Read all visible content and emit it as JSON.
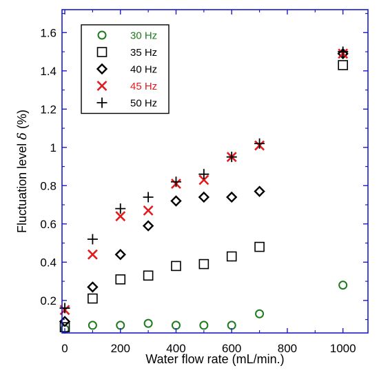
{
  "chart_data": {
    "type": "scatter",
    "xlabel": "Water flow rate (mL/min.)",
    "ylabel_prefix": "Fluctuation level ",
    "ylabel_symbol": "δ",
    "ylabel_suffix": " (%)",
    "xlim": [
      -10,
      1090
    ],
    "ylim": [
      0.03,
      1.72
    ],
    "x_ticks": [
      0,
      200,
      400,
      600,
      800,
      1000
    ],
    "y_ticks": [
      0.2,
      0.4,
      0.6,
      0.8,
      1,
      1.2,
      1.4,
      1.6
    ],
    "x_tick_labels": [
      "0",
      "200",
      "400",
      "600",
      "800",
      "1000"
    ],
    "y_tick_labels": [
      "0.2",
      "0.4",
      "0.6",
      "0.8",
      "1",
      "1.2",
      "1.4",
      "1.6"
    ],
    "grid": false,
    "legend_position": "top-left",
    "series": [
      {
        "name": "30 Hz",
        "marker": "circle",
        "color": "#1e7a1e",
        "points": [
          [
            0,
            0.05
          ],
          [
            100,
            0.07
          ],
          [
            200,
            0.07
          ],
          [
            300,
            0.08
          ],
          [
            400,
            0.07
          ],
          [
            500,
            0.07
          ],
          [
            600,
            0.07
          ],
          [
            700,
            0.13
          ],
          [
            1000,
            0.28
          ]
        ]
      },
      {
        "name": "35 Hz",
        "marker": "square",
        "color": "#000000",
        "points": [
          [
            0,
            0.06
          ],
          [
            100,
            0.21
          ],
          [
            200,
            0.31
          ],
          [
            300,
            0.33
          ],
          [
            400,
            0.38
          ],
          [
            500,
            0.39
          ],
          [
            600,
            0.43
          ],
          [
            700,
            0.48
          ],
          [
            1000,
            1.43
          ]
        ]
      },
      {
        "name": "40 Hz",
        "marker": "diamond",
        "color": "#000000",
        "points": [
          [
            0,
            0.09
          ],
          [
            100,
            0.27
          ],
          [
            200,
            0.44
          ],
          [
            300,
            0.59
          ],
          [
            400,
            0.72
          ],
          [
            500,
            0.74
          ],
          [
            600,
            0.74
          ],
          [
            700,
            0.77
          ],
          [
            1000,
            1.49
          ]
        ]
      },
      {
        "name": "45 Hz",
        "marker": "x",
        "color": "#e31a1c",
        "points": [
          [
            0,
            0.15
          ],
          [
            100,
            0.44
          ],
          [
            200,
            0.64
          ],
          [
            300,
            0.67
          ],
          [
            400,
            0.81
          ],
          [
            500,
            0.83
          ],
          [
            600,
            0.95
          ],
          [
            700,
            1.01
          ],
          [
            1000,
            1.49
          ]
        ]
      },
      {
        "name": "50 Hz",
        "marker": "plus",
        "color": "#000000",
        "points": [
          [
            0,
            0.16
          ],
          [
            100,
            0.52
          ],
          [
            200,
            0.68
          ],
          [
            300,
            0.74
          ],
          [
            400,
            0.82
          ],
          [
            500,
            0.86
          ],
          [
            600,
            0.95
          ],
          [
            700,
            1.02
          ],
          [
            1000,
            1.5
          ]
        ]
      }
    ]
  }
}
